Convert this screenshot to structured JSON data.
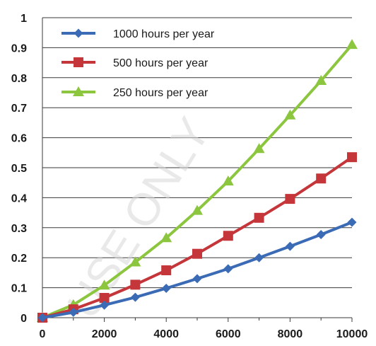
{
  "chart_data": {
    "type": "line",
    "x": [
      0,
      1000,
      2000,
      3000,
      4000,
      5000,
      6000,
      7000,
      8000,
      9000,
      10000
    ],
    "xlim": [
      0,
      10000
    ],
    "ylim": [
      0,
      1
    ],
    "x_ticks": [
      0,
      2000,
      4000,
      6000,
      8000,
      10000
    ],
    "x_tick_labels": [
      "0",
      "2000",
      "4000",
      "6000",
      "8000",
      "10000"
    ],
    "y_ticks": [
      0,
      0.1,
      0.2,
      0.3,
      0.4,
      0.5,
      0.6,
      0.7,
      0.8,
      0.9,
      1
    ],
    "y_tick_labels": [
      "0",
      "0.1",
      "0.2",
      "0.3",
      "0.4",
      "0.5",
      "0.6",
      "0.7",
      "0.8",
      "0.9",
      "1"
    ],
    "grid": "horizontal",
    "legend_position": "top-left",
    "title": "",
    "xlabel": "",
    "ylabel": "",
    "series": [
      {
        "name": "1000 hours per year",
        "color": "#3b6bb5",
        "marker": "diamond",
        "values": [
          0,
          0.018,
          0.042,
          0.068,
          0.098,
          0.13,
          0.163,
          0.2,
          0.238,
          0.277,
          0.318
        ]
      },
      {
        "name": "500 hours per year",
        "color": "#c4363a",
        "marker": "square",
        "values": [
          0,
          0.028,
          0.066,
          0.11,
          0.158,
          0.213,
          0.273,
          0.333,
          0.396,
          0.464,
          0.535
        ]
      },
      {
        "name": "250 hours per year",
        "color": "#8cc63f",
        "marker": "triangle",
        "values": [
          0,
          0.043,
          0.108,
          0.185,
          0.266,
          0.357,
          0.455,
          0.563,
          0.675,
          0.79,
          0.91
        ]
      }
    ]
  },
  "watermark": "USE ONLY"
}
